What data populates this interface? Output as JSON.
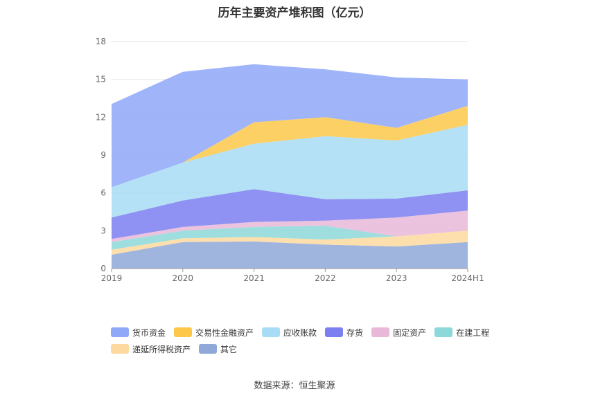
{
  "title": "历年主要资产堆积图（亿元）",
  "source": "数据来源：恒生聚源",
  "chart_data": {
    "type": "area",
    "stacked": true,
    "title": "历年主要资产堆积图（亿元）",
    "categories": [
      "2019",
      "2020",
      "2021",
      "2022",
      "2023",
      "2024H1"
    ],
    "ylim": [
      0,
      18
    ],
    "yticks": [
      "0",
      "3",
      "6",
      "9",
      "12",
      "15",
      "18"
    ],
    "grid": true,
    "legend_position": "bottom",
    "series": [
      {
        "name": "其它",
        "color": "#8fa8d8",
        "values": [
          1.1,
          2.1,
          2.15,
          1.9,
          1.75,
          2.1
        ]
      },
      {
        "name": "递延所得税资产",
        "color": "#fdd9a0",
        "values": [
          0.4,
          0.3,
          0.35,
          0.4,
          0.8,
          0.9
        ]
      },
      {
        "name": "在建工程",
        "color": "#8dd8d8",
        "values": [
          0.6,
          0.6,
          0.8,
          1.1,
          0.0,
          0.0
        ]
      },
      {
        "name": "固定资产",
        "color": "#e8b8d8",
        "values": [
          0.25,
          0.3,
          0.4,
          0.4,
          1.5,
          1.6
        ]
      },
      {
        "name": "存货",
        "color": "#7b7ff0",
        "values": [
          1.7,
          2.1,
          2.6,
          1.7,
          1.5,
          1.6
        ]
      },
      {
        "name": "应收账款",
        "color": "#a8dcf5",
        "values": [
          2.4,
          3.0,
          3.6,
          5.0,
          4.6,
          5.2
        ]
      },
      {
        "name": "交易性金融资产",
        "color": "#fdc84a",
        "values": [
          0.0,
          0.0,
          1.7,
          1.5,
          1.0,
          1.5
        ]
      },
      {
        "name": "货币资金",
        "color": "#8fa8f8",
        "values": [
          6.6,
          7.2,
          4.6,
          3.8,
          4.0,
          2.1
        ]
      }
    ],
    "legend_order": [
      "货币资金",
      "交易性金融资产",
      "应收账款",
      "存货",
      "固定资产",
      "在建工程",
      "递延所得税资产",
      "其它"
    ]
  }
}
